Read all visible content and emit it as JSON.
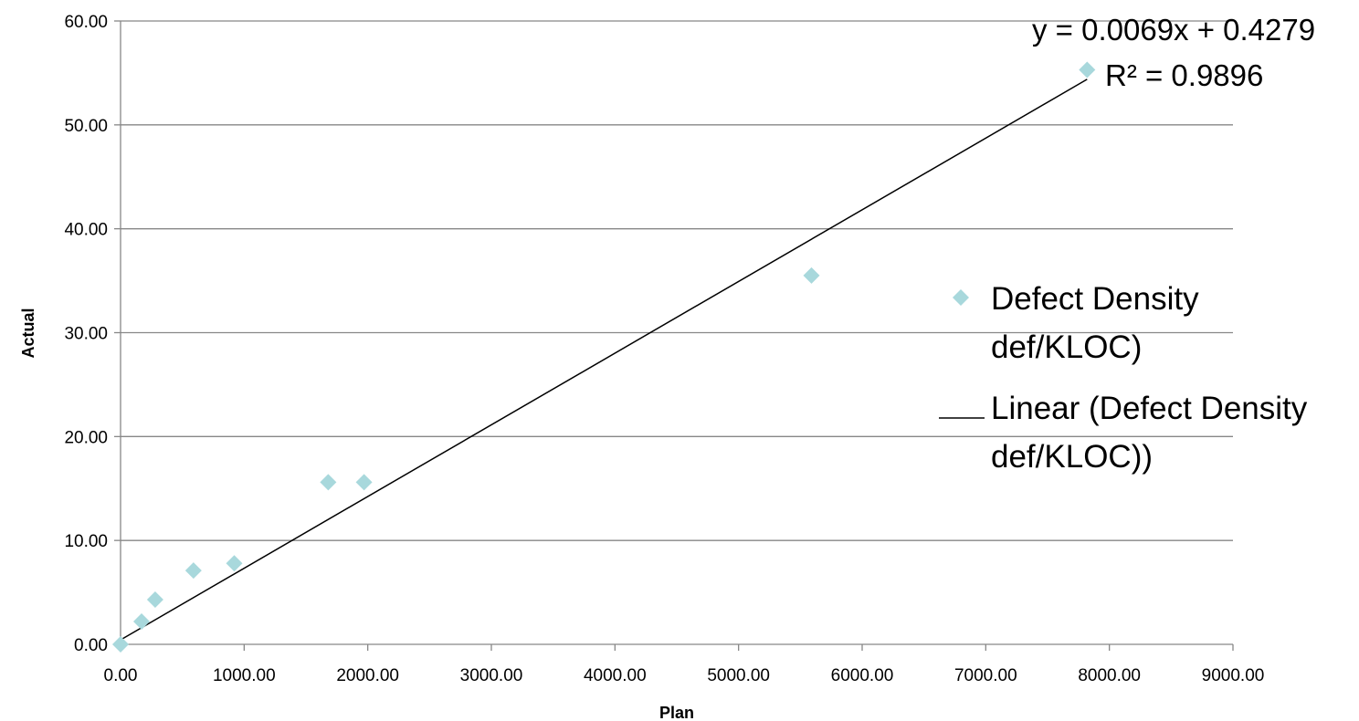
{
  "chart_data": {
    "type": "scatter",
    "xlabel": "Plan",
    "ylabel": "Actual",
    "xlim": [
      0,
      9000
    ],
    "ylim": [
      0,
      60
    ],
    "x_ticks": [
      "0.00",
      "1000.00",
      "2000.00",
      "3000.00",
      "4000.00",
      "5000.00",
      "6000.00",
      "7000.00",
      "8000.00",
      "9000.00"
    ],
    "y_ticks": [
      "0.00",
      "10.00",
      "20.00",
      "30.00",
      "40.00",
      "50.00",
      "60.00"
    ],
    "grid": "horizontal",
    "legend_position": "right",
    "series": [
      {
        "name": "Defect Density def/KLOC)",
        "legend_lines": [
          "Defect Density",
          "def/KLOC)"
        ],
        "marker": "diamond",
        "color": "#a8d8dc",
        "points": [
          {
            "x": 0,
            "y": 0
          },
          {
            "x": 170,
            "y": 2.2
          },
          {
            "x": 280,
            "y": 4.3
          },
          {
            "x": 590,
            "y": 7.1
          },
          {
            "x": 920,
            "y": 7.8
          },
          {
            "x": 1680,
            "y": 15.6
          },
          {
            "x": 1970,
            "y": 15.6
          },
          {
            "x": 5590,
            "y": 35.5
          },
          {
            "x": 7820,
            "y": 55.3
          }
        ]
      }
    ],
    "trendline": {
      "name": "Linear (Defect Density def/KLOC))",
      "legend_lines": [
        "Linear (Defect Density",
        "def/KLOC))"
      ],
      "slope": 0.0069,
      "intercept": 0.4279,
      "x_range": [
        0,
        7820
      ],
      "color": "#000000",
      "equation": "y = 0.0069x + 0.4279",
      "r_squared": "R² = 0.9896"
    }
  }
}
